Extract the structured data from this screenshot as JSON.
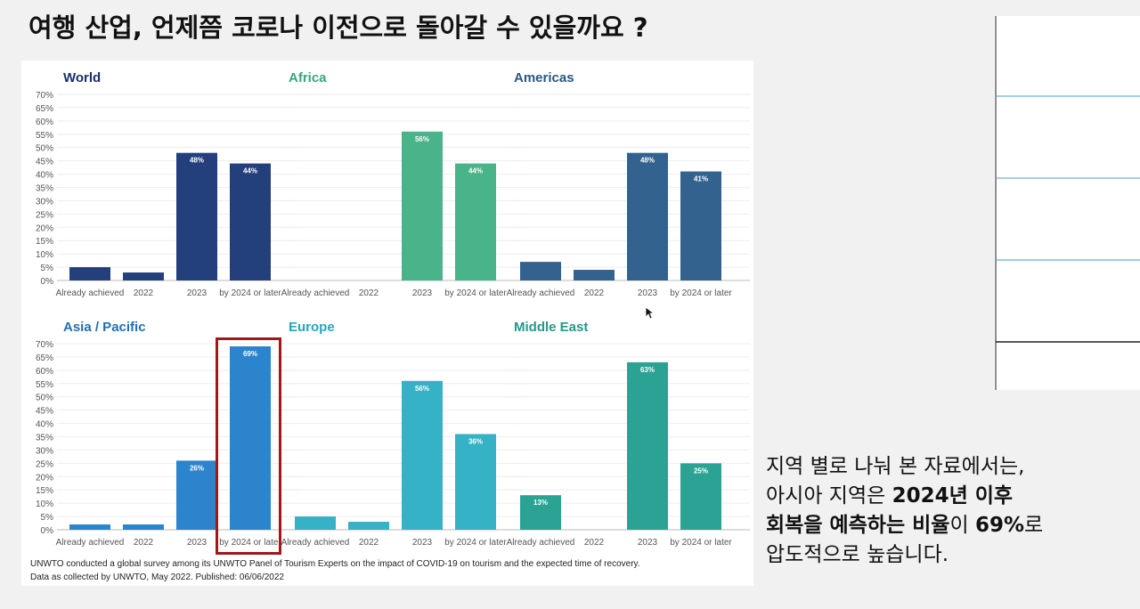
{
  "title": "여행 산업, 언제쯤 코로나 이전으로 돌아갈 수 있을까요 ?",
  "caption": {
    "line1": "지역 별로 나눠 본 자료에서는,",
    "line2_a": "아시아 지역은 ",
    "line2_b": "2024년 이후",
    "line3_a": "회복을 예측하는 비율",
    "line3_b": "이 ",
    "line3_c": "69%",
    "line3_d": "로",
    "line4": "압도적으로 높습니다."
  },
  "source": {
    "line1": "UNWTO conducted a global survey among its UNWTO Panel of Tourism Experts on the impact of COVID-19 on tourism and the expected time of recovery.",
    "line2": "Data as collected by UNWTO, May 2022. Published: 06/06/2022"
  },
  "chart_data": [
    {
      "type": "bar",
      "title": "World",
      "color": "#233f7c",
      "title_color": "#1b2f66",
      "categories": [
        "Already achieved",
        "2022",
        "2023",
        "by 2024 or later"
      ],
      "values": [
        5,
        3,
        48,
        44
      ],
      "data_labels": [
        "",
        "",
        "48%",
        "44%"
      ],
      "ylim": [
        0,
        70
      ],
      "yticks": [
        "0%",
        "5%",
        "10%",
        "15%",
        "20%",
        "25%",
        "30%",
        "35%",
        "40%",
        "45%",
        "50%",
        "55%",
        "60%",
        "65%",
        "70%"
      ]
    },
    {
      "type": "bar",
      "title": "Africa",
      "color": "#49b38a",
      "title_color": "#3aa57b",
      "categories": [
        "Already achieved",
        "2022",
        "2023",
        "by 2024 or later"
      ],
      "values": [
        0,
        0,
        56,
        44
      ],
      "data_labels": [
        "",
        "",
        "56%",
        "44%"
      ],
      "ylim": [
        0,
        70
      ]
    },
    {
      "type": "bar",
      "title": "Americas",
      "color": "#33628f",
      "title_color": "#2a5680",
      "categories": [
        "Already achieved",
        "2022",
        "2023",
        "by 2024 or later"
      ],
      "values": [
        7,
        4,
        48,
        41
      ],
      "data_labels": [
        "",
        "",
        "48%",
        "41%"
      ],
      "ylim": [
        0,
        70
      ]
    },
    {
      "type": "bar",
      "title": "Asia / Pacific",
      "color": "#2b84cc",
      "title_color": "#1f6fb4",
      "categories": [
        "Already achieved",
        "2022",
        "2023",
        "by 2024 or later"
      ],
      "values": [
        2,
        2,
        26,
        69
      ],
      "data_labels": [
        "",
        "",
        "26%",
        "69%"
      ],
      "ylim": [
        0,
        70
      ],
      "yticks": [
        "0%",
        "5%",
        "10%",
        "15%",
        "20%",
        "25%",
        "30%",
        "35%",
        "40%",
        "45%",
        "50%",
        "55%",
        "60%",
        "65%",
        "70%"
      ]
    },
    {
      "type": "bar",
      "title": "Europe",
      "color": "#35b2c6",
      "title_color": "#22a7bd",
      "categories": [
        "Already achieved",
        "2022",
        "2023",
        "by 2024 or later"
      ],
      "values": [
        5,
        3,
        56,
        36
      ],
      "data_labels": [
        "",
        "",
        "56%",
        "36%"
      ],
      "ylim": [
        0,
        70
      ]
    },
    {
      "type": "bar",
      "title": "Middle East",
      "color": "#2aa394",
      "title_color": "#1f9a8b",
      "categories": [
        "Already achieved",
        "2022",
        "2023",
        "by 2024 or later"
      ],
      "values": [
        13,
        0,
        63,
        25
      ],
      "data_labels": [
        "13%",
        "",
        "63%",
        "25%"
      ],
      "ylim": [
        0,
        70
      ]
    }
  ]
}
